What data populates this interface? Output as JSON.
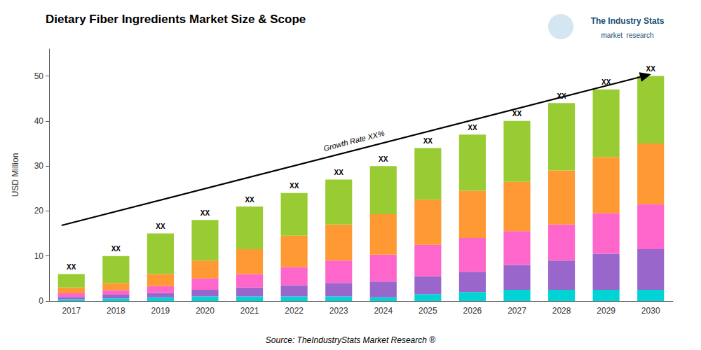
{
  "chart_data": {
    "type": "bar",
    "title": "Dietary Fiber Ingredients Market Size & Scope",
    "ylabel": "USD Million",
    "source": "Source: TheIndustryStats Market Research ®",
    "categories": [
      2017,
      2018,
      2019,
      2020,
      2021,
      2022,
      2023,
      2024,
      2025,
      2026,
      2027,
      2028,
      2029,
      2030
    ],
    "series": [
      {
        "color": "#00D4D4",
        "values": [
          0.4,
          0.6,
          0.8,
          1.0,
          1.0,
          1.0,
          1.0,
          0.8,
          1.5,
          2.0,
          2.5,
          2.5,
          2.5,
          2.5
        ]
      },
      {
        "color": "#9966CC",
        "values": [
          0.5,
          0.8,
          1.0,
          1.5,
          2.0,
          2.5,
          3.0,
          3.5,
          4.0,
          4.5,
          5.5,
          6.5,
          8.0,
          9.0
        ]
      },
      {
        "color": "#FF66CC",
        "values": [
          0.8,
          1.0,
          1.5,
          2.5,
          3.0,
          4.0,
          5.0,
          6.0,
          7.0,
          7.5,
          7.5,
          8.0,
          9.0,
          10.0
        ]
      },
      {
        "color": "#FF9933",
        "values": [
          1.3,
          1.6,
          2.7,
          4.0,
          5.5,
          7.0,
          8.0,
          9.0,
          10.0,
          10.5,
          11.0,
          12.0,
          12.5,
          13.5
        ]
      },
      {
        "color": "#99CC33",
        "values": [
          3.0,
          6.0,
          9.0,
          9.0,
          9.5,
          9.5,
          10.0,
          10.7,
          11.5,
          12.5,
          13.5,
          15.0,
          15.0,
          15.0
        ]
      }
    ],
    "stacked": true,
    "ylim": [
      0,
      56
    ],
    "yticks": [
      0,
      10,
      20,
      30,
      40,
      50
    ],
    "grid": false,
    "bar_label": "XX",
    "annotations": [
      "Growth Rate XX%"
    ],
    "logo": [
      "The Industry Stats",
      "market  research"
    ]
  }
}
